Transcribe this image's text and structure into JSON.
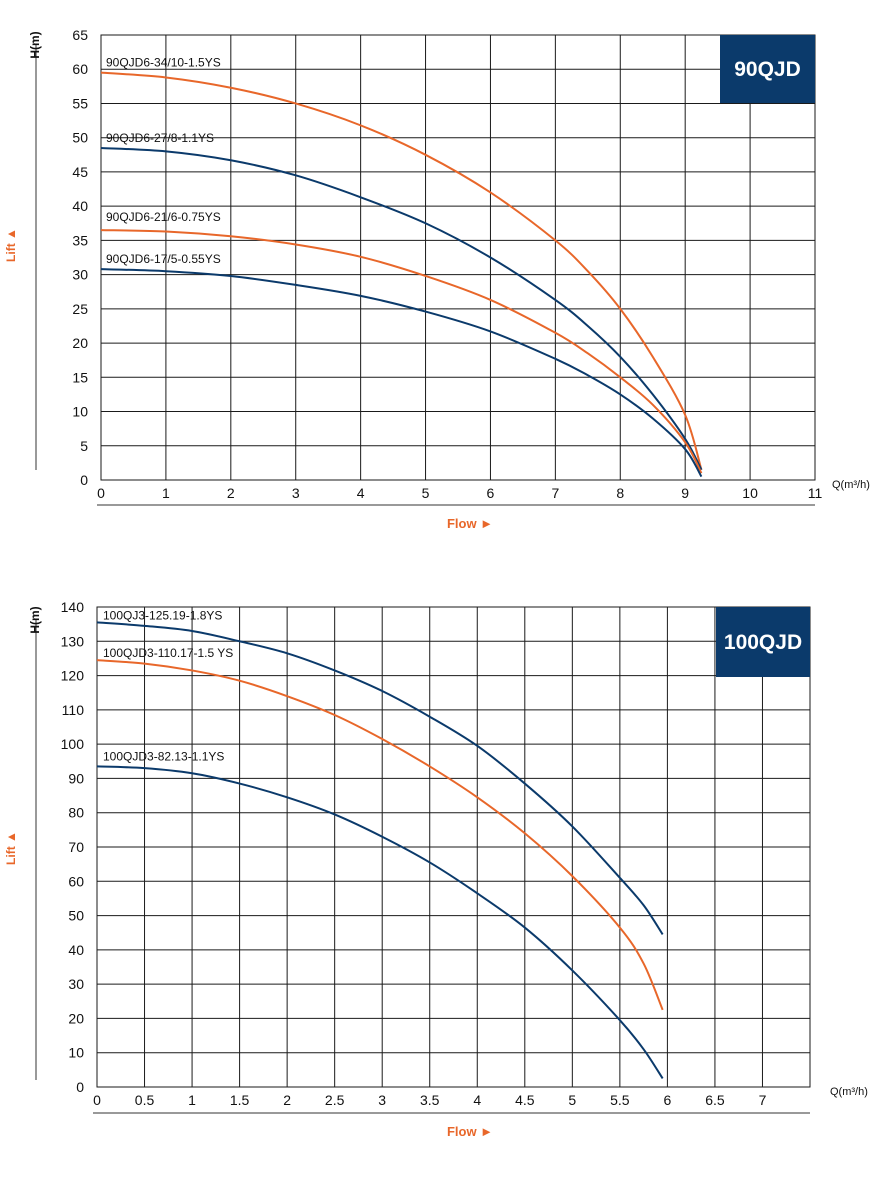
{
  "chart_data": [
    {
      "type": "line",
      "title": "",
      "xlabel": "Flow ►",
      "ylabel": "Lift ▲",
      "y_unit": "H(m)",
      "x_unit_text": "Q(m³/h)",
      "xlim": [
        0,
        11
      ],
      "ylim": [
        0,
        65
      ],
      "x_ticks": [
        "0",
        "1",
        "2",
        "3",
        "4",
        "5",
        "6",
        "7",
        "8",
        "9",
        "10",
        "11"
      ],
      "y_ticks": [
        "0",
        "5",
        "10",
        "15",
        "20",
        "25",
        "30",
        "35",
        "40",
        "45",
        "50",
        "55",
        "60",
        "65"
      ],
      "grid": true,
      "badge": "90QJD",
      "badge_color": "#0b3a6b",
      "series": [
        {
          "name": "90QJD6-34/10-1.5YS",
          "color": "#e8672a",
          "x": [
            0,
            1,
            2,
            3,
            4,
            5,
            6,
            7,
            7.5,
            8,
            8.5,
            9,
            9.25
          ],
          "y": [
            59.5,
            58.8,
            57.3,
            55.0,
            51.8,
            47.5,
            42.0,
            35.0,
            30.5,
            25.0,
            18.0,
            9.5,
            1.5
          ]
        },
        {
          "name": "90QJD6-27/8-1.1YS",
          "color": "#0b3a6b",
          "x": [
            0,
            1,
            2,
            3,
            4,
            5,
            6,
            7,
            7.5,
            8,
            8.5,
            9,
            9.25
          ],
          "y": [
            48.5,
            48.0,
            46.7,
            44.5,
            41.3,
            37.5,
            32.5,
            26.3,
            22.5,
            18.0,
            12.5,
            6.0,
            1.5
          ]
        },
        {
          "name": "90QJD6-21/6-0.75YS",
          "color": "#e8672a",
          "x": [
            0,
            1,
            2,
            3,
            4,
            5,
            6,
            7,
            7.5,
            8,
            8.5,
            9,
            9.25
          ],
          "y": [
            36.5,
            36.3,
            35.6,
            34.4,
            32.6,
            29.8,
            26.3,
            21.5,
            18.5,
            15.0,
            11.0,
            5.5,
            1.0
          ]
        },
        {
          "name": "90QJD6-17/5-0.55YS",
          "color": "#0b3a6b",
          "x": [
            0,
            1,
            2,
            3,
            4,
            5,
            6,
            7,
            7.5,
            8,
            8.5,
            9,
            9.25
          ],
          "y": [
            30.8,
            30.5,
            29.8,
            28.5,
            26.9,
            24.6,
            21.7,
            17.7,
            15.3,
            12.5,
            9.0,
            4.5,
            0.5
          ]
        }
      ]
    },
    {
      "type": "line",
      "title": "",
      "xlabel": "Flow ►",
      "ylabel": "Lift ▲",
      "y_unit": "H(m)",
      "x_unit_text": "Q(m³/h)",
      "xlim": [
        0,
        7.5
      ],
      "ylim": [
        0,
        140
      ],
      "x_ticks": [
        "0",
        "0.5",
        "1",
        "1.5",
        "2",
        "2.5",
        "3",
        "3.5",
        "4",
        "4.5",
        "5",
        "5.5",
        "6",
        "6.5",
        "7"
      ],
      "y_ticks": [
        "0",
        "10",
        "20",
        "30",
        "40",
        "50",
        "60",
        "70",
        "80",
        "90",
        "100",
        "110",
        "120",
        "130",
        "140"
      ],
      "grid": true,
      "badge": "100QJD",
      "badge_color": "#0b3a6b",
      "series": [
        {
          "name": "100QJ3-125.19-1.8YS",
          "color": "#0b3a6b",
          "x": [
            0,
            0.5,
            1,
            1.5,
            2,
            2.5,
            3,
            3.5,
            4,
            4.5,
            5,
            5.5,
            5.75,
            5.95
          ],
          "y": [
            135.5,
            134.5,
            133.0,
            130.0,
            126.5,
            121.5,
            115.5,
            108.0,
            99.5,
            88.5,
            76.0,
            61.0,
            53.0,
            44.5
          ]
        },
        {
          "name": "100QJD3-110.17-1.5 YS",
          "color": "#e8672a",
          "x": [
            0,
            0.5,
            1,
            1.5,
            2,
            2.5,
            3,
            3.5,
            4,
            4.5,
            5,
            5.5,
            5.75,
            5.95
          ],
          "y": [
            124.5,
            123.5,
            121.5,
            118.5,
            114.0,
            108.5,
            101.5,
            93.5,
            84.5,
            74.0,
            61.5,
            46.5,
            36.0,
            22.5
          ]
        },
        {
          "name": "100QJD3-82.13-1.1YS",
          "color": "#0b3a6b",
          "x": [
            0,
            0.5,
            1,
            1.5,
            2,
            2.5,
            3,
            3.5,
            4,
            4.5,
            5,
            5.5,
            5.75,
            5.95
          ],
          "y": [
            93.5,
            93.0,
            91.5,
            88.5,
            84.5,
            79.5,
            73.0,
            65.5,
            56.5,
            46.5,
            34.0,
            19.5,
            11.0,
            2.5
          ]
        }
      ]
    }
  ]
}
